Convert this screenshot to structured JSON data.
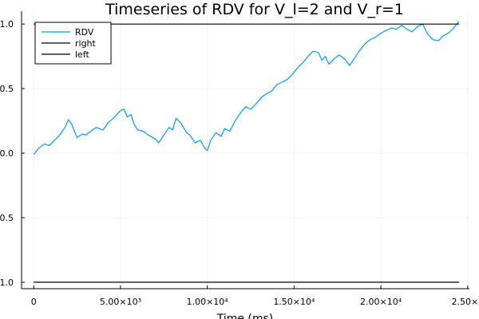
{
  "chart_data": {
    "type": "line",
    "title": "Timeseries of RDV for V_l=2 and V_r=1",
    "xlabel": "Time (ms)",
    "ylabel": "",
    "xlim": [
      -700,
      25100
    ],
    "ylim": [
      -1.05,
      1.1
    ],
    "grid": true,
    "legend_position": "top-left",
    "x_ticks": [
      {
        "value": 0,
        "label": "0"
      },
      {
        "value": 5000,
        "label": "5.00×10³"
      },
      {
        "value": 10000,
        "label": "1.00×10⁴"
      },
      {
        "value": 15000,
        "label": "1.50×10⁴"
      },
      {
        "value": 20000,
        "label": "2.00×10⁴"
      },
      {
        "value": 25000,
        "label": "2.50×1"
      }
    ],
    "y_ticks": [
      {
        "value": 1.0,
        "label": "1.0"
      },
      {
        "value": 0.5,
        "label": "0.5"
      },
      {
        "value": 0.0,
        "label": "0.0"
      },
      {
        "value": -0.5,
        "label": "0.5"
      },
      {
        "value": -1.0,
        "label": "1.0"
      }
    ],
    "series": [
      {
        "name": "RDV",
        "color": "#009af9",
        "x": [
          0,
          300,
          600,
          900,
          1200,
          1500,
          1800,
          2000,
          2200,
          2500,
          2800,
          3000,
          3300,
          3600,
          4000,
          4300,
          4600,
          5000,
          5200,
          5400,
          5600,
          5800,
          6000,
          6300,
          6600,
          7000,
          7200,
          7500,
          7800,
          8000,
          8200,
          8500,
          8800,
          9000,
          9300,
          9600,
          9800,
          10000,
          10200,
          10500,
          10800,
          11000,
          11300,
          11600,
          11900,
          12200,
          12500,
          12800,
          13100,
          13400,
          13700,
          14000,
          14300,
          14600,
          14900,
          15200,
          15500,
          15800,
          16100,
          16400,
          16600,
          16800,
          17000,
          17300,
          17600,
          17900,
          18200,
          18500,
          18800,
          19100,
          19400,
          19700,
          20000,
          20300,
          20600,
          20900,
          21200,
          21500,
          21800,
          22100,
          22400,
          22700,
          23000,
          23300,
          23600,
          23900,
          24200,
          24500
        ],
        "y": [
          -0.01,
          0.04,
          0.07,
          0.06,
          0.1,
          0.14,
          0.2,
          0.26,
          0.22,
          0.12,
          0.15,
          0.14,
          0.17,
          0.2,
          0.18,
          0.24,
          0.27,
          0.33,
          0.34,
          0.28,
          0.3,
          0.22,
          0.18,
          0.17,
          0.14,
          0.11,
          0.08,
          0.14,
          0.2,
          0.18,
          0.27,
          0.23,
          0.16,
          0.14,
          0.08,
          0.1,
          0.05,
          0.02,
          0.1,
          0.16,
          0.13,
          0.19,
          0.17,
          0.25,
          0.31,
          0.36,
          0.34,
          0.38,
          0.43,
          0.46,
          0.48,
          0.53,
          0.55,
          0.57,
          0.61,
          0.66,
          0.7,
          0.75,
          0.79,
          0.78,
          0.72,
          0.75,
          0.69,
          0.73,
          0.76,
          0.73,
          0.68,
          0.74,
          0.8,
          0.85,
          0.88,
          0.9,
          0.93,
          0.95,
          0.97,
          0.96,
          0.99,
          0.96,
          0.94,
          0.98,
          1.0,
          0.92,
          0.88,
          0.87,
          0.91,
          0.93,
          0.97,
          1.02
        ]
      },
      {
        "name": "right",
        "color": "#000000",
        "x": [
          0,
          24500
        ],
        "y": [
          1.0,
          1.0
        ]
      },
      {
        "name": "left",
        "color": "#000000",
        "x": [
          0,
          24500
        ],
        "y": [
          -1.0,
          -1.0
        ]
      }
    ]
  }
}
